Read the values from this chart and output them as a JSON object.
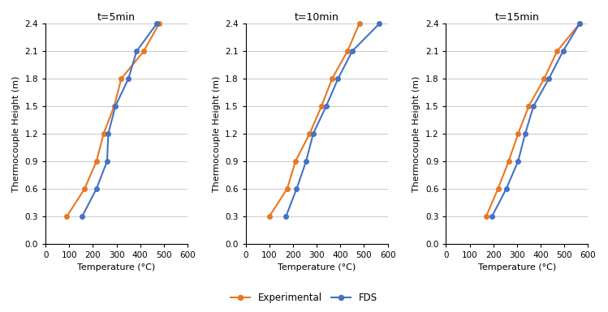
{
  "heights": [
    0.3,
    0.6,
    0.9,
    1.2,
    1.5,
    1.8,
    2.1,
    2.4
  ],
  "panels": [
    {
      "title": "t=5min",
      "experimental": [
        90,
        165,
        215,
        245,
        290,
        320,
        415,
        480
      ],
      "fds": [
        155,
        215,
        260,
        265,
        295,
        350,
        385,
        470
      ]
    },
    {
      "title": "t=10min",
      "experimental": [
        100,
        175,
        210,
        270,
        320,
        365,
        430,
        480
      ],
      "fds": [
        170,
        215,
        255,
        285,
        340,
        390,
        450,
        565
      ]
    },
    {
      "title": "t=15min",
      "experimental": [
        170,
        220,
        265,
        305,
        350,
        415,
        470,
        565
      ],
      "fds": [
        195,
        255,
        305,
        335,
        370,
        435,
        495,
        565
      ]
    }
  ],
  "experimental_color": "#E87722",
  "fds_color": "#4472C4",
  "xlim": [
    0,
    600
  ],
  "ylim": [
    0.0,
    2.4
  ],
  "yticks": [
    0.0,
    0.3,
    0.6,
    0.9,
    1.2,
    1.5,
    1.8,
    2.1,
    2.4
  ],
  "xticks": [
    0,
    100,
    200,
    300,
    400,
    500,
    600
  ],
  "xlabel": "Temperature (°C)",
  "ylabel": "Thermocouple Height (m)",
  "legend_labels": [
    "Experimental",
    "FDS"
  ],
  "marker": "o",
  "markersize": 4,
  "linewidth": 1.5
}
